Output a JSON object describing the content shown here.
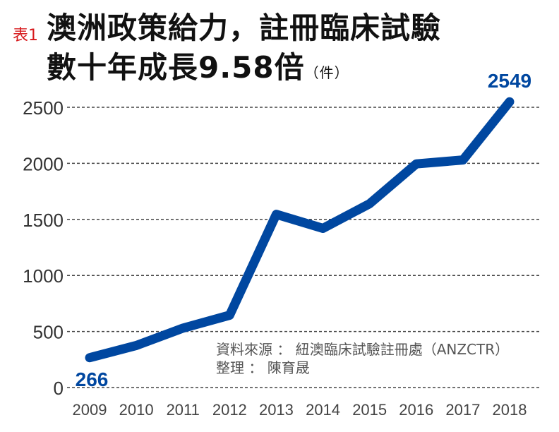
{
  "header": {
    "tag": "表1",
    "title_line1": "澳洲政策給力，註冊臨床試驗",
    "title_line2": "數十年成長9.58倍",
    "unit": "（件）"
  },
  "source": {
    "line1": "資料來源 ： 紐澳臨床試驗註冊處（ANZCTR）",
    "line2": "整理 ： 陳育晟"
  },
  "chart_data": {
    "type": "line",
    "title": "澳洲政策給力，註冊臨床試驗數十年成長9.58倍",
    "ylabel": "（件）",
    "categories": [
      "2009",
      "2010",
      "2011",
      "2012",
      "2013",
      "2014",
      "2015",
      "2016",
      "2017",
      "2018"
    ],
    "values": [
      266,
      375,
      530,
      645,
      1545,
      1420,
      1640,
      1995,
      2030,
      2549
    ],
    "yticks": [
      0,
      500,
      1000,
      1500,
      2000,
      2500
    ],
    "ylim": [
      0,
      2500
    ],
    "grid": true,
    "data_labels": [
      {
        "index": 0,
        "text": "266"
      },
      {
        "index": 9,
        "text": "2549"
      }
    ],
    "line_color": "#0047a0"
  }
}
